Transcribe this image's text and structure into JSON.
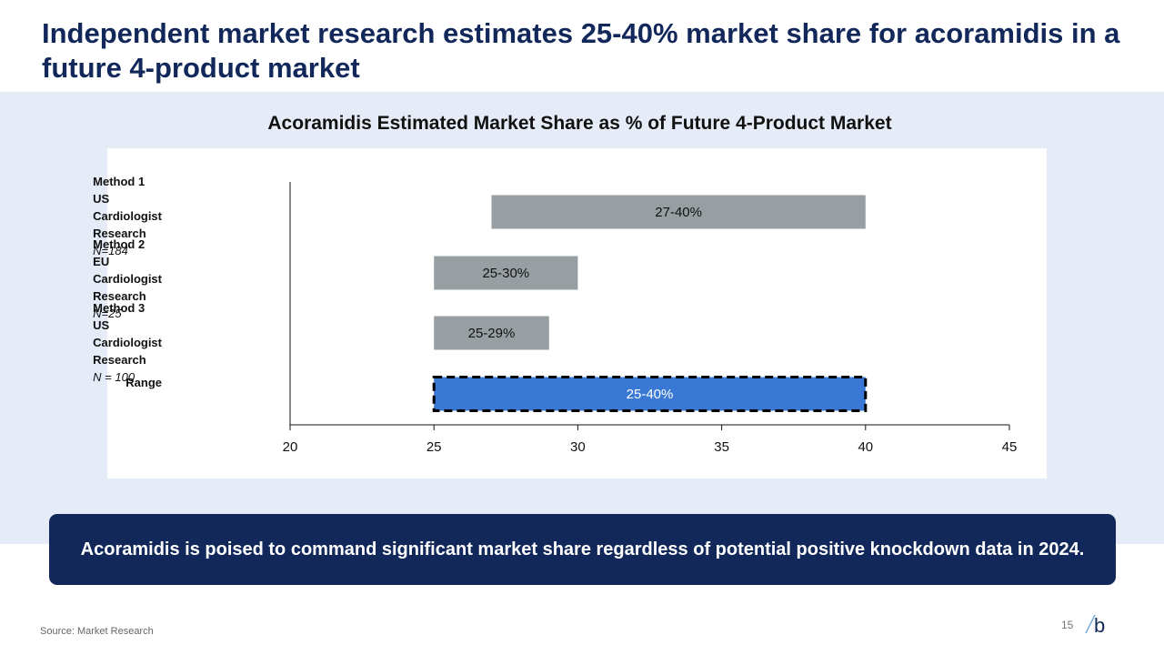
{
  "slide": {
    "title": "Independent market research estimates 25-40% market share for acoramidis in a future 4-product market",
    "callout": "Acoramidis is poised to command significant market share regardless of potential positive knockdown data in 2024.",
    "source": "Source: Market Research",
    "page_number": "15",
    "logo_letter": "b"
  },
  "colors": {
    "title": "#12285a",
    "band": "#e6ecf7",
    "method_bar": "#989fa3",
    "range_bar": "#3a78d6",
    "callout_bg": "#12285a"
  },
  "chart_data": {
    "type": "bar",
    "orientation": "horizontal-range",
    "title": "Acoramidis Estimated Market Share as % of Future 4-Product Market",
    "xlim": [
      20,
      45
    ],
    "xticks": [
      20,
      25,
      30,
      35,
      40,
      45
    ],
    "categories": [
      {
        "line1": "Method 1",
        "line2": "US Cardiologist Research",
        "line3": "N=184"
      },
      {
        "line1": "Method 2",
        "line2": "EU Cardiologist Research",
        "line3": "N=25"
      },
      {
        "line1": "Method 3",
        "line2": "US Cardiologist Research",
        "line3": "N = 100"
      },
      {
        "line1": "Range",
        "line2": "",
        "line3": ""
      }
    ],
    "bars": [
      {
        "start": 27,
        "end": 40,
        "label": "27-40%",
        "style": "method"
      },
      {
        "start": 25,
        "end": 30,
        "label": "25-30%",
        "style": "method"
      },
      {
        "start": 25,
        "end": 29,
        "label": "25-29%",
        "style": "method"
      },
      {
        "start": 25,
        "end": 40,
        "label": "25-40%",
        "style": "range"
      }
    ]
  }
}
